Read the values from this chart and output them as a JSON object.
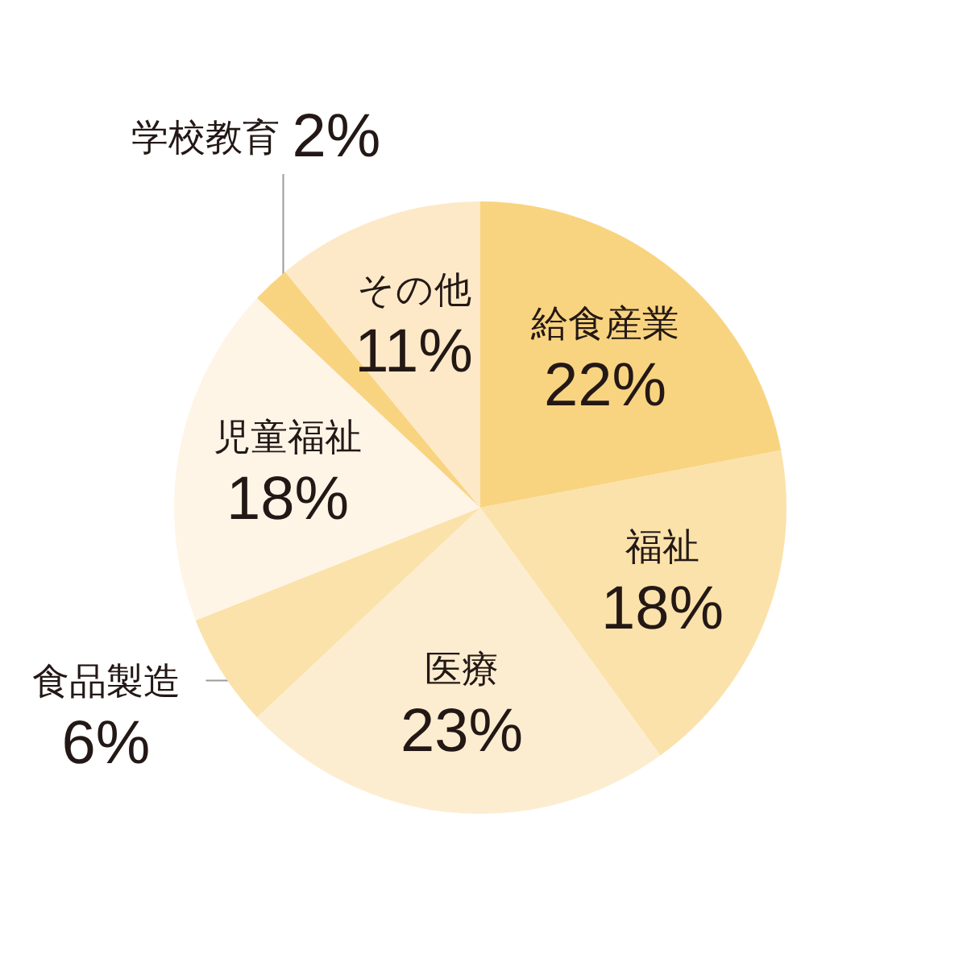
{
  "chart_data": {
    "type": "pie",
    "categories": [
      "給食産業",
      "福祉",
      "医療",
      "食品製造",
      "児童福祉",
      "学校教育",
      "その他"
    ],
    "values": [
      22,
      18,
      23,
      6,
      18,
      2,
      11
    ],
    "value_labels": [
      "22%",
      "18%",
      "23%",
      "6%",
      "18%",
      "2%",
      "11%"
    ],
    "colors": [
      "#f9d480",
      "#fbe2ab",
      "#fdedd0",
      "#fbe2ab",
      "#fef5e7",
      "#f9d480",
      "#fde9c8"
    ]
  }
}
